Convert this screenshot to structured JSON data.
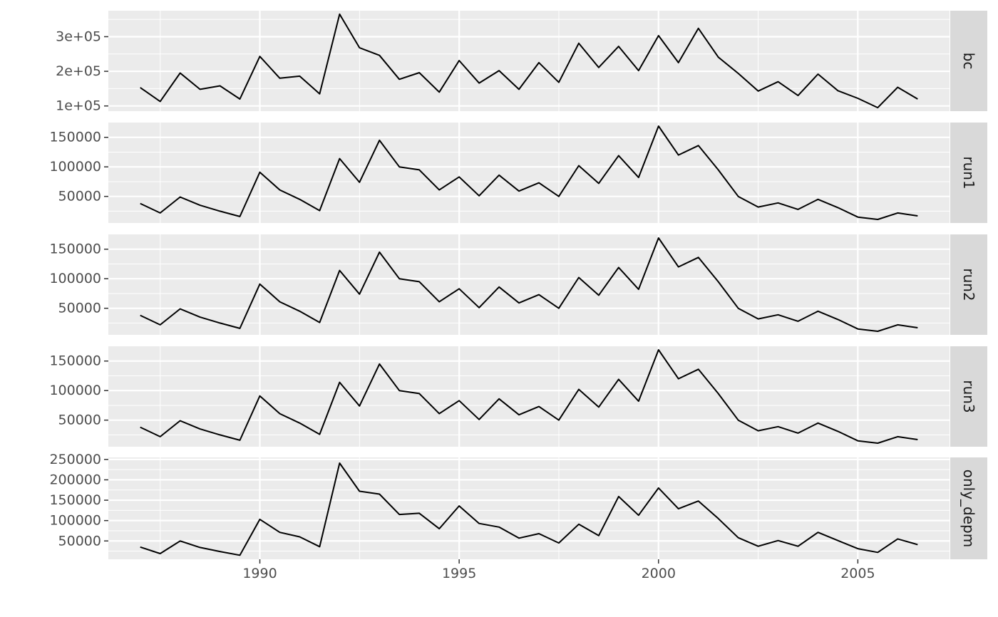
{
  "chart_data": {
    "type": "line",
    "facet": "rows",
    "x": [
      1987,
      1987.5,
      1988,
      1988.5,
      1989,
      1989.5,
      1990,
      1990.5,
      1991,
      1991.5,
      1992,
      1992.5,
      1993,
      1993.5,
      1994,
      1994.5,
      1995,
      1995.5,
      1996,
      1996.5,
      1997,
      1997.5,
      1998,
      1998.5,
      1999,
      1999.5,
      2000,
      2000.5,
      2001,
      2001.5,
      2002,
      2002.5,
      2003,
      2003.5,
      2004,
      2004.5,
      2005,
      2005.5,
      2006,
      2006.5
    ],
    "xlim": [
      1986.2,
      2007.3
    ],
    "xticks": [
      1990,
      1995,
      2000,
      2005
    ],
    "xtick_labels": [
      "1990",
      "1995",
      "2000",
      "2005"
    ],
    "grid": true,
    "line_color": "#000000",
    "panel_background": "#ebebeb",
    "strip_background": "#d9d9d9",
    "panels": [
      {
        "name": "bc",
        "ylim": [
          85000,
          375000
        ],
        "yticks": [
          100000,
          200000,
          300000
        ],
        "ytick_labels": [
          "1e+05",
          "2e+05",
          "3e+05"
        ],
        "values": [
          153000,
          113000,
          195000,
          148000,
          158000,
          120000,
          243000,
          180000,
          186000,
          135000,
          365000,
          268000,
          246000,
          177000,
          196000,
          140000,
          231000,
          166000,
          202000,
          148000,
          225000,
          168000,
          281000,
          211000,
          272000,
          202000,
          303000,
          225000,
          324000,
          241000,
          194000,
          143000,
          170000,
          130000,
          192000,
          144000,
          122000,
          95000,
          154000,
          120000
        ]
      },
      {
        "name": "run1",
        "ylim": [
          5000,
          175000
        ],
        "yticks": [
          50000,
          100000,
          150000
        ],
        "ytick_labels": [
          "50000",
          "100000",
          "150000"
        ],
        "values": [
          38000,
          22000,
          49000,
          35000,
          25000,
          16000,
          91000,
          61000,
          45000,
          26000,
          114000,
          74000,
          145000,
          100000,
          95000,
          61000,
          83000,
          51000,
          86000,
          59000,
          73000,
          50000,
          102000,
          72000,
          119000,
          82000,
          169000,
          120000,
          136000,
          95000,
          50000,
          32000,
          39000,
          28000,
          45000,
          31000,
          15000,
          11000,
          22000,
          17000
        ]
      },
      {
        "name": "run2",
        "ylim": [
          5000,
          175000
        ],
        "yticks": [
          50000,
          100000,
          150000
        ],
        "ytick_labels": [
          "50000",
          "100000",
          "150000"
        ],
        "values": [
          38000,
          22000,
          49000,
          35000,
          25000,
          16000,
          91000,
          61000,
          45000,
          26000,
          114000,
          74000,
          145000,
          100000,
          95000,
          61000,
          83000,
          51000,
          86000,
          59000,
          73000,
          50000,
          102000,
          72000,
          119000,
          82000,
          169000,
          120000,
          136000,
          95000,
          50000,
          32000,
          39000,
          28000,
          45000,
          31000,
          15000,
          11000,
          22000,
          17000
        ]
      },
      {
        "name": "run3",
        "ylim": [
          5000,
          175000
        ],
        "yticks": [
          50000,
          100000,
          150000
        ],
        "ytick_labels": [
          "50000",
          "100000",
          "150000"
        ],
        "values": [
          38000,
          22000,
          49000,
          35000,
          25000,
          16000,
          91000,
          61000,
          45000,
          26000,
          114000,
          74000,
          145000,
          100000,
          95000,
          61000,
          83000,
          51000,
          86000,
          59000,
          73000,
          50000,
          102000,
          72000,
          119000,
          82000,
          169000,
          120000,
          136000,
          95000,
          50000,
          32000,
          39000,
          28000,
          45000,
          31000,
          15000,
          11000,
          22000,
          17000
        ]
      },
      {
        "name": "only_depm",
        "ylim": [
          5000,
          255000
        ],
        "yticks": [
          50000,
          100000,
          150000,
          200000,
          250000
        ],
        "ytick_labels": [
          "50000",
          "100000",
          "150000",
          "200000",
          "250000"
        ],
        "values": [
          35000,
          19000,
          50000,
          34000,
          24000,
          15000,
          103000,
          71000,
          60000,
          36000,
          241000,
          172000,
          165000,
          115000,
          118000,
          80000,
          136000,
          93000,
          84000,
          57000,
          68000,
          45000,
          91000,
          63000,
          159000,
          113000,
          180000,
          129000,
          148000,
          105000,
          58000,
          37000,
          51000,
          37000,
          71000,
          51000,
          31000,
          22000,
          55000,
          41000
        ]
      }
    ]
  }
}
